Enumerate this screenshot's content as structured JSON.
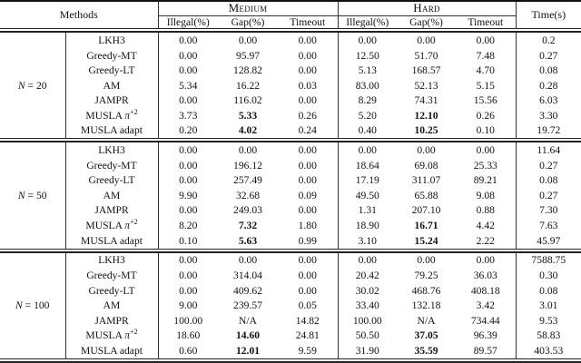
{
  "header": {
    "methods": "Methods",
    "groups": [
      {
        "label": "Medium"
      },
      {
        "label": "Hard"
      }
    ],
    "subcols": [
      "Illegal(%)",
      "Gap(%)",
      "Timeout"
    ],
    "time": "Time(s)"
  },
  "text_color": "#111111",
  "rule_color": "#222222",
  "blocks": [
    {
      "n_label_parts": [
        {
          "t": "N",
          "i": true
        },
        {
          "t": " = 20"
        }
      ],
      "rows": [
        {
          "method_parts": [
            {
              "t": "LKH3"
            }
          ],
          "values": [
            "0.00",
            "0.00",
            "0.00",
            "0.00",
            "0.00",
            "0.00",
            "0.2"
          ],
          "bold": []
        },
        {
          "method_parts": [
            {
              "t": "Greedy-MT"
            }
          ],
          "values": [
            "0.00",
            "95.97",
            "0.00",
            "12.50",
            "51.70",
            "7.48",
            "0.27"
          ],
          "bold": []
        },
        {
          "method_parts": [
            {
              "t": "Greedy-LT"
            }
          ],
          "values": [
            "0.00",
            "128.82",
            "0.00",
            "5.13",
            "168.57",
            "4.70",
            "0.08"
          ],
          "bold": []
        },
        {
          "method_parts": [
            {
              "t": "AM"
            }
          ],
          "values": [
            "5.34",
            "16.22",
            "0.03",
            "83.00",
            "52.13",
            "5.15",
            "0.28"
          ],
          "bold": []
        },
        {
          "method_parts": [
            {
              "t": "JAMPR"
            }
          ],
          "values": [
            "0.00",
            "116.02",
            "0.00",
            "8.29",
            "74.31",
            "15.56",
            "6.03"
          ],
          "bold": []
        },
        {
          "method_parts": [
            {
              "t": "MUSLA "
            },
            {
              "t": "π",
              "i": true
            },
            {
              "t": "+2",
              "sup": true
            }
          ],
          "values": [
            "3.73",
            "5.33",
            "0.26",
            "5.20",
            "12.10",
            "0.26",
            "3.30"
          ],
          "bold": [
            1,
            4
          ]
        },
        {
          "method_parts": [
            {
              "t": "MUSLA adapt"
            }
          ],
          "values": [
            "0.20",
            "4.02",
            "0.24",
            "0.40",
            "10.25",
            "0.10",
            "19.72"
          ],
          "bold": [
            1,
            4
          ]
        }
      ]
    },
    {
      "n_label_parts": [
        {
          "t": "N",
          "i": true
        },
        {
          "t": " = 50"
        }
      ],
      "rows": [
        {
          "method_parts": [
            {
              "t": "LKH3"
            }
          ],
          "values": [
            "0.00",
            "0.00",
            "0.00",
            "0.00",
            "0.00",
            "0.00",
            "11.64"
          ],
          "bold": []
        },
        {
          "method_parts": [
            {
              "t": "Greedy-MT"
            }
          ],
          "values": [
            "0.00",
            "196.12",
            "0.00",
            "18.64",
            "69.08",
            "25.33",
            "0.27"
          ],
          "bold": []
        },
        {
          "method_parts": [
            {
              "t": "Greedy-LT"
            }
          ],
          "values": [
            "0.00",
            "257.49",
            "0.00",
            "17.19",
            "311.07",
            "89.21",
            "0.08"
          ],
          "bold": []
        },
        {
          "method_parts": [
            {
              "t": "AM"
            }
          ],
          "values": [
            "9.90",
            "32.68",
            "0.09",
            "49.50",
            "65.88",
            "9.08",
            "0.27"
          ],
          "bold": []
        },
        {
          "method_parts": [
            {
              "t": "JAMPR"
            }
          ],
          "values": [
            "0.00",
            "249.03",
            "0.00",
            "1.31",
            "207.10",
            "0.88",
            "7.30"
          ],
          "bold": []
        },
        {
          "method_parts": [
            {
              "t": "MUSLA "
            },
            {
              "t": "π",
              "i": true
            },
            {
              "t": "+2",
              "sup": true
            }
          ],
          "values": [
            "8.20",
            "7.32",
            "1.80",
            "18.90",
            "16.71",
            "4.42",
            "7.63"
          ],
          "bold": [
            1,
            4
          ]
        },
        {
          "method_parts": [
            {
              "t": "MUSLA adapt"
            }
          ],
          "values": [
            "0.10",
            "5.63",
            "0.99",
            "3.10",
            "15.24",
            "2.22",
            "45.97"
          ],
          "bold": [
            1,
            4
          ]
        }
      ]
    },
    {
      "n_label_parts": [
        {
          "t": "N",
          "i": true
        },
        {
          "t": " = 100"
        }
      ],
      "rows": [
        {
          "method_parts": [
            {
              "t": "LKH3"
            }
          ],
          "values": [
            "0.00",
            "0.00",
            "0.00",
            "0.00",
            "0.00",
            "0.00",
            "7588.75"
          ],
          "bold": []
        },
        {
          "method_parts": [
            {
              "t": "Greedy-MT"
            }
          ],
          "values": [
            "0.00",
            "314.04",
            "0.00",
            "20.42",
            "79.25",
            "36.03",
            "0.30"
          ],
          "bold": []
        },
        {
          "method_parts": [
            {
              "t": "Greedy-LT"
            }
          ],
          "values": [
            "0.00",
            "409.62",
            "0.00",
            "30.02",
            "468.76",
            "408.18",
            "0.08"
          ],
          "bold": []
        },
        {
          "method_parts": [
            {
              "t": "AM"
            }
          ],
          "values": [
            "9.00",
            "239.57",
            "0.05",
            "33.40",
            "132.18",
            "3.42",
            "3.01"
          ],
          "bold": []
        },
        {
          "method_parts": [
            {
              "t": "JAMPR"
            }
          ],
          "values": [
            "100.00",
            "N/A",
            "14.82",
            "100.00",
            "N/A",
            "734.44",
            "9.53"
          ],
          "bold": []
        },
        {
          "method_parts": [
            {
              "t": "MUSLA "
            },
            {
              "t": "π",
              "i": true
            },
            {
              "t": "+2",
              "sup": true
            }
          ],
          "values": [
            "18.60",
            "14.60",
            "24.81",
            "50.50",
            "37.05",
            "96.39",
            "58.83"
          ],
          "bold": [
            1,
            4
          ]
        },
        {
          "method_parts": [
            {
              "t": "MUSLA adapt"
            }
          ],
          "values": [
            "0.60",
            "12.01",
            "9.59",
            "31.90",
            "35.59",
            "89.57",
            "403.53"
          ],
          "bold": [
            1,
            4
          ]
        }
      ]
    }
  ]
}
